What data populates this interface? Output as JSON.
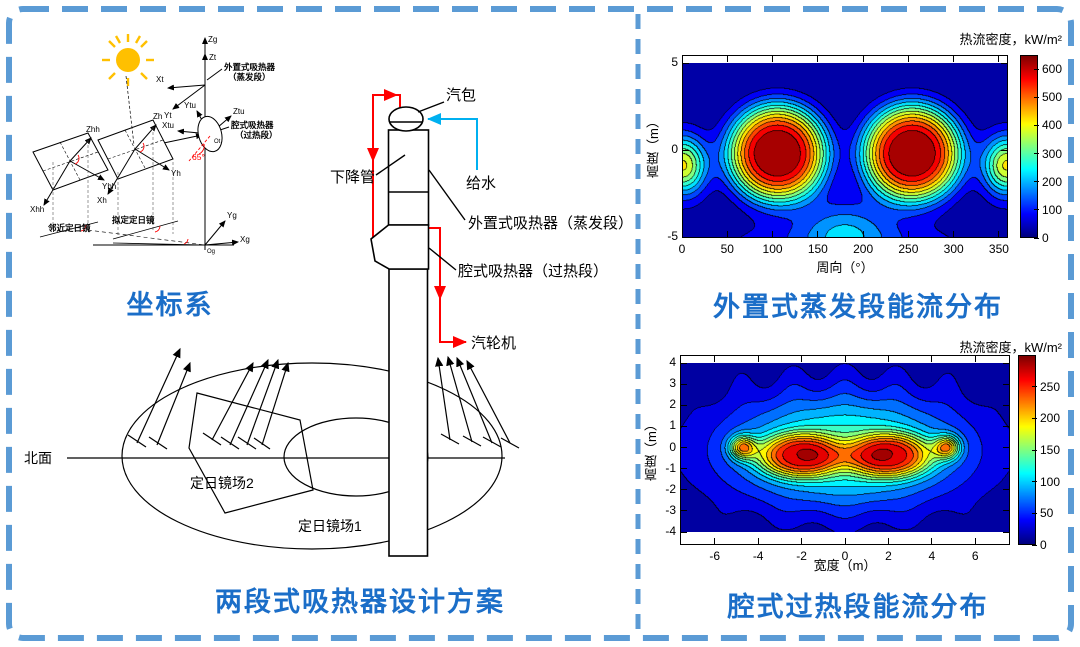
{
  "frame": {
    "border_color": "#5B9BD5",
    "caption_color": "#1B6EC8"
  },
  "left_panel": {
    "coordinate_diagram": {
      "caption": "坐标系",
      "sun_color": "#FFC000",
      "axis_labels": {
        "zg": "Zg",
        "zt": "Zt",
        "xt": "Xt",
        "yt": "Yt",
        "ytu": "Ytu",
        "ztu": "Ztu",
        "xtu": "Xtu",
        "ot": "Ot",
        "og": "Og",
        "xg": "Xg",
        "yg": "Yg",
        "zh": "Zh",
        "yh": "Yh",
        "xh": "Xh",
        "zhh": "Zhh",
        "yhh": "Yhh",
        "xhh": "Xhh"
      },
      "receiver_external_line1": "外置式吸热器",
      "receiver_external_line2": "（蒸发段）",
      "receiver_cavity_line1": "腔式吸热器",
      "receiver_cavity_line2": "（过热段）",
      "tilt_angle": "65°",
      "heliostat_near": "邻近定日镜",
      "heliostat_target": "拟定定日镜"
    },
    "tower_diagram": {
      "caption": "两段式吸热器设计方案",
      "steam_drum": "汽包",
      "downcomer": "下降管",
      "feedwater": "给水",
      "evaporator": "外置式吸热器（蒸发段）",
      "superheater": "腔式吸热器（过热段）",
      "turbine": "汽轮机",
      "north": "北面",
      "field2": "定日镜场2",
      "field1": "定日镜场1"
    }
  },
  "chart_data": [
    {
      "type": "filled_contour",
      "colormap": "jet",
      "caption": "外置式蒸发段能流分布",
      "colorbar_title": "热流密度，kW/m²",
      "xlabel": "周向（°）",
      "ylabel": "高度（m）",
      "xlim": [
        0,
        360
      ],
      "ylim": [
        -5,
        5
      ],
      "xticks": [
        0,
        50,
        100,
        150,
        200,
        250,
        300,
        350
      ],
      "yticks": [
        5,
        0,
        -5
      ],
      "colorbar_ticks": [
        0,
        100,
        200,
        300,
        400,
        500,
        600
      ],
      "vmax": 650,
      "level_step": 50,
      "hotspots": [
        {
          "x": 105,
          "y": 0,
          "value": 650
        },
        {
          "x": 255,
          "y": 0,
          "value": 650
        }
      ],
      "model_bumps": [
        {
          "x": 105,
          "y": -0.2,
          "sx": 55,
          "sy": 2.8,
          "amp": 655,
          "p": 1.6
        },
        {
          "x": 255,
          "y": -0.2,
          "sx": 55,
          "sy": 2.8,
          "amp": 655,
          "p": 1.6
        },
        {
          "x": 0,
          "y": -0.9,
          "sx": 26,
          "sy": 1.7,
          "amp": 410,
          "p": 1
        },
        {
          "x": 360,
          "y": -0.9,
          "sx": 26,
          "sy": 1.7,
          "amp": 410,
          "p": 1
        },
        {
          "x": 180,
          "y": -4.6,
          "sx": 50,
          "sy": 1.9,
          "amp": 150,
          "p": 1
        },
        {
          "x": 180,
          "y": -5.5,
          "sx": 160,
          "sy": 1.6,
          "amp": 90,
          "p": 1
        }
      ],
      "ripples": []
    },
    {
      "type": "filled_contour",
      "colormap": "jet",
      "caption": "腔式过热段能流分布",
      "colorbar_title": "热流密度，kW/m²",
      "xlabel": "宽度（m）",
      "ylabel": "高度（m）",
      "xlim": [
        -7.6,
        7.6
      ],
      "ylim": [
        -4,
        4
      ],
      "xticks": [
        -6,
        -4,
        -2,
        0,
        2,
        4,
        6
      ],
      "yticks": [
        4,
        3,
        2,
        1,
        0,
        -1,
        -2,
        -3,
        -4
      ],
      "colorbar_ticks": [
        0,
        50,
        100,
        150,
        200,
        250
      ],
      "vmax": 300,
      "level_step": 20,
      "hotspots": [
        {
          "x": -2.1,
          "y": -0.4,
          "value": 285
        },
        {
          "x": 2.1,
          "y": -0.4,
          "value": 285
        }
      ],
      "model_bumps": [
        {
          "x": -2.1,
          "y": -0.4,
          "sx": 2.0,
          "sy": 1.05,
          "amp": 158,
          "p": 1.5
        },
        {
          "x": 2.1,
          "y": -0.4,
          "sx": 2.0,
          "sy": 1.05,
          "amp": 158,
          "p": 1.5
        },
        {
          "x": -4.75,
          "y": 0,
          "sx": 0.6,
          "sy": 0.55,
          "amp": 150,
          "p": 1
        },
        {
          "x": 4.75,
          "y": 0,
          "sx": 0.6,
          "sy": 0.55,
          "amp": 150,
          "p": 1
        },
        {
          "x": 0,
          "y": -0.2,
          "sx": 5.4,
          "sy": 2.6,
          "amp": 97,
          "p": 1.2
        },
        {
          "x": 0,
          "y": 0,
          "sx": 7.2,
          "sy": 3.4,
          "amp": 40,
          "p": 1
        }
      ],
      "ripples": [
        {
          "amp": 9,
          "freq": 2.6,
          "y": 3.2,
          "sy": 1.1
        },
        {
          "amp": 6,
          "freq": 2.2,
          "y": -3.5,
          "sy": 0.9
        }
      ]
    }
  ]
}
